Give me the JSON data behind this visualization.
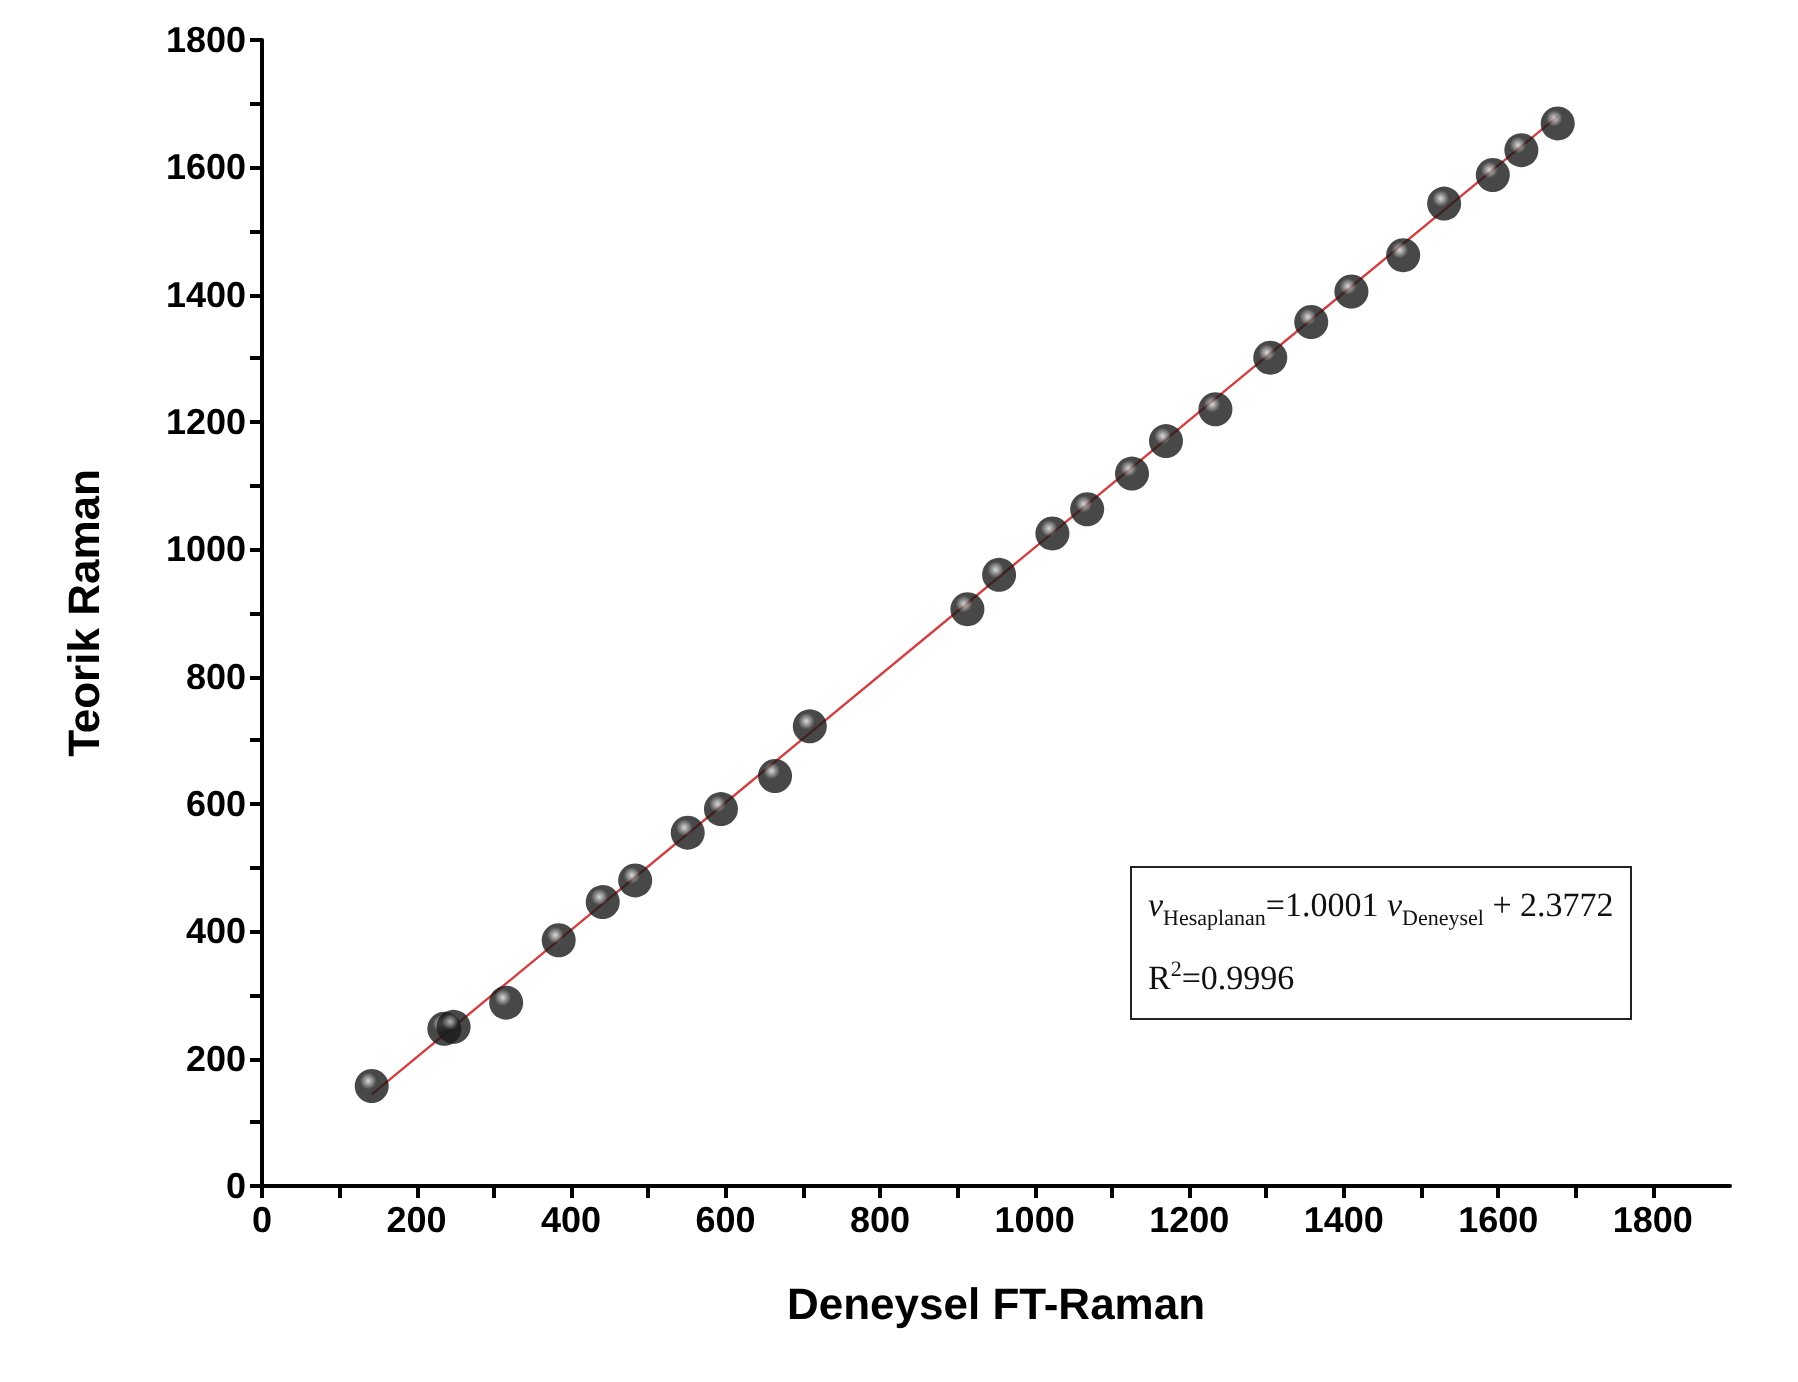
{
  "chart_data": {
    "type": "scatter",
    "xlabel": "Deneysel FT-Raman",
    "ylabel": "Teorik Raman",
    "x": [
      142,
      236,
      248,
      316,
      384,
      441,
      483,
      551,
      594,
      664,
      709,
      913,
      954,
      1023,
      1068,
      1126,
      1170,
      1234,
      1305,
      1358,
      1410,
      1477,
      1530,
      1593,
      1630,
      1677
    ],
    "series": [
      {
        "color": "#1a1a1a",
        "values": [
          157,
          247,
          250,
          288,
          386,
          446,
          480,
          555,
          592,
          644,
          722,
          906,
          960,
          1025,
          1063,
          1119,
          1170,
          1220,
          1301,
          1357,
          1405,
          1462,
          1543,
          1588,
          1627,
          1669
        ]
      },
      {
        "type": "line",
        "marker": "none",
        "color": "#d04040",
        "x": [
          142,
          1677
        ],
        "values": [
          144,
          1680
        ]
      }
    ],
    "xlim": [
      0,
      1900
    ],
    "ylim": [
      0,
      1800
    ],
    "xticks": [
      0,
      {
        "value": 100,
        "label": null
      },
      200,
      {
        "value": 300,
        "label": null
      },
      400,
      {
        "value": 500,
        "label": null
      },
      600,
      {
        "value": 700,
        "label": null
      },
      800,
      {
        "value": 900,
        "label": null
      },
      1000,
      {
        "value": 1100,
        "label": null
      },
      1200,
      {
        "value": 1300,
        "label": null
      },
      1400,
      {
        "value": 1500,
        "label": null
      },
      1600,
      {
        "value": 1700,
        "label": null
      },
      1800
    ],
    "yticks": [
      0,
      {
        "value": 100,
        "label": null
      },
      200,
      {
        "value": 300,
        "label": null
      },
      400,
      {
        "value": 500,
        "label": null
      },
      600,
      {
        "value": 700,
        "label": null
      },
      800,
      {
        "value": 900,
        "label": null
      },
      1000,
      {
        "value": 1100,
        "label": null
      },
      1200,
      {
        "value": 1300,
        "label": null
      },
      1400,
      {
        "value": 1500,
        "label": null
      },
      1600,
      {
        "value": 1700,
        "label": null
      },
      1800
    ],
    "annotations": [
      "v$_{Hesaplanan}$=1.0001 v$_{Deneysel}$ + 2.3772",
      "R$^{2}$=0.9996"
    ],
    "marker": "circle",
    "grid": false
  }
}
